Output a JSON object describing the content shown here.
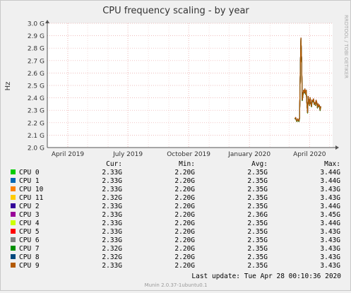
{
  "chart_data": {
    "type": "line",
    "title": "CPU frequency scaling - by year",
    "ylabel": "Hz",
    "watermark": "RRDTOOL / TOBI OETIKER",
    "ylim": [
      2.0,
      3.0
    ],
    "y_ticks": [
      {
        "value": 2.0,
        "label": "2.0 G"
      },
      {
        "value": 2.1,
        "label": "2.1 G"
      },
      {
        "value": 2.2,
        "label": "2.2 G"
      },
      {
        "value": 2.3,
        "label": "2.3 G"
      },
      {
        "value": 2.4,
        "label": "2.4 G"
      },
      {
        "value": 2.5,
        "label": "2.5 G"
      },
      {
        "value": 2.6,
        "label": "2.6 G"
      },
      {
        "value": 2.7,
        "label": "2.7 G"
      },
      {
        "value": 2.8,
        "label": "2.8 G"
      },
      {
        "value": 2.9,
        "label": "2.9 G"
      },
      {
        "value": 3.0,
        "label": "3.0 G"
      }
    ],
    "xlim": [
      "2019-03-01",
      "2020-05-06"
    ],
    "x_ticks": [
      {
        "date": "2019-04-01",
        "label": "April 2019"
      },
      {
        "date": "2019-07-01",
        "label": "July 2019"
      },
      {
        "date": "2019-10-01",
        "label": "October 2019"
      },
      {
        "date": "2020-01-01",
        "label": "January 2020"
      },
      {
        "date": "2020-04-01",
        "label": "April 2020"
      }
    ],
    "grid": true,
    "series_points": [
      [
        "2020-03-10",
        2.23
      ],
      [
        "2020-03-11",
        2.24
      ],
      [
        "2020-03-12",
        2.22
      ],
      [
        "2020-03-13",
        2.21
      ],
      [
        "2020-03-14",
        2.23
      ],
      [
        "2020-03-15",
        2.22
      ],
      [
        "2020-03-16",
        2.21
      ],
      [
        "2020-03-17",
        2.24
      ],
      [
        "2020-03-18",
        2.62
      ],
      [
        "2020-03-19",
        2.88
      ],
      [
        "2020-03-20",
        2.72
      ],
      [
        "2020-03-21",
        2.38
      ],
      [
        "2020-03-22",
        2.42
      ],
      [
        "2020-03-23",
        2.46
      ],
      [
        "2020-03-24",
        2.44
      ],
      [
        "2020-03-25",
        2.47
      ],
      [
        "2020-03-26",
        2.43
      ],
      [
        "2020-03-27",
        2.46
      ],
      [
        "2020-03-28",
        2.36
      ],
      [
        "2020-03-29",
        2.28
      ],
      [
        "2020-03-30",
        2.41
      ],
      [
        "2020-03-31",
        2.38
      ],
      [
        "2020-04-01",
        2.34
      ],
      [
        "2020-04-02",
        2.4
      ],
      [
        "2020-04-03",
        2.36
      ],
      [
        "2020-04-04",
        2.33
      ],
      [
        "2020-04-05",
        2.38
      ],
      [
        "2020-04-06",
        2.37
      ],
      [
        "2020-04-07",
        2.39
      ],
      [
        "2020-04-08",
        2.35
      ],
      [
        "2020-04-09",
        2.36
      ],
      [
        "2020-04-10",
        2.34
      ],
      [
        "2020-04-11",
        2.38
      ],
      [
        "2020-04-12",
        2.36
      ],
      [
        "2020-04-13",
        2.32
      ],
      [
        "2020-04-14",
        2.35
      ],
      [
        "2020-04-15",
        2.33
      ],
      [
        "2020-04-16",
        2.34
      ],
      [
        "2020-04-17",
        2.3
      ],
      [
        "2020-04-18",
        2.33
      ]
    ],
    "series_note_color": "#8B4513",
    "legend_headers": {
      "cur": "Cur:",
      "min": "Min:",
      "avg": "Avg:",
      "max": "Max:"
    },
    "legend": [
      {
        "name": "CPU 0",
        "color": "#00CC00",
        "cur": "2.33G",
        "min": "2.20G",
        "avg": "2.35G",
        "max": "3.44G"
      },
      {
        "name": "CPU 1",
        "color": "#0066B3",
        "cur": "2.33G",
        "min": "2.20G",
        "avg": "2.35G",
        "max": "3.44G"
      },
      {
        "name": "CPU 10",
        "color": "#FF8000",
        "cur": "2.33G",
        "min": "2.20G",
        "avg": "2.35G",
        "max": "3.43G"
      },
      {
        "name": "CPU 11",
        "color": "#FFCC00",
        "cur": "2.32G",
        "min": "2.20G",
        "avg": "2.35G",
        "max": "3.43G"
      },
      {
        "name": "CPU 2",
        "color": "#330099",
        "cur": "2.33G",
        "min": "2.20G",
        "avg": "2.35G",
        "max": "3.44G"
      },
      {
        "name": "CPU 3",
        "color": "#990099",
        "cur": "2.33G",
        "min": "2.20G",
        "avg": "2.36G",
        "max": "3.45G"
      },
      {
        "name": "CPU 4",
        "color": "#CCFF00",
        "cur": "2.33G",
        "min": "2.20G",
        "avg": "2.35G",
        "max": "3.44G"
      },
      {
        "name": "CPU 5",
        "color": "#FF0000",
        "cur": "2.33G",
        "min": "2.20G",
        "avg": "2.35G",
        "max": "3.43G"
      },
      {
        "name": "CPU 6",
        "color": "#808080",
        "cur": "2.33G",
        "min": "2.20G",
        "avg": "2.35G",
        "max": "3.43G"
      },
      {
        "name": "CPU 7",
        "color": "#008F00",
        "cur": "2.32G",
        "min": "2.20G",
        "avg": "2.35G",
        "max": "3.43G"
      },
      {
        "name": "CPU 8",
        "color": "#00487D",
        "cur": "2.32G",
        "min": "2.20G",
        "avg": "2.35G",
        "max": "3.43G"
      },
      {
        "name": "CPU 9",
        "color": "#B35A00",
        "cur": "2.33G",
        "min": "2.20G",
        "avg": "2.35G",
        "max": "3.43G"
      }
    ],
    "last_update": "Last update: Tue Apr 28 00:10:36 2020",
    "footer": "Munin 2.0.37-1ubuntu0.1"
  }
}
